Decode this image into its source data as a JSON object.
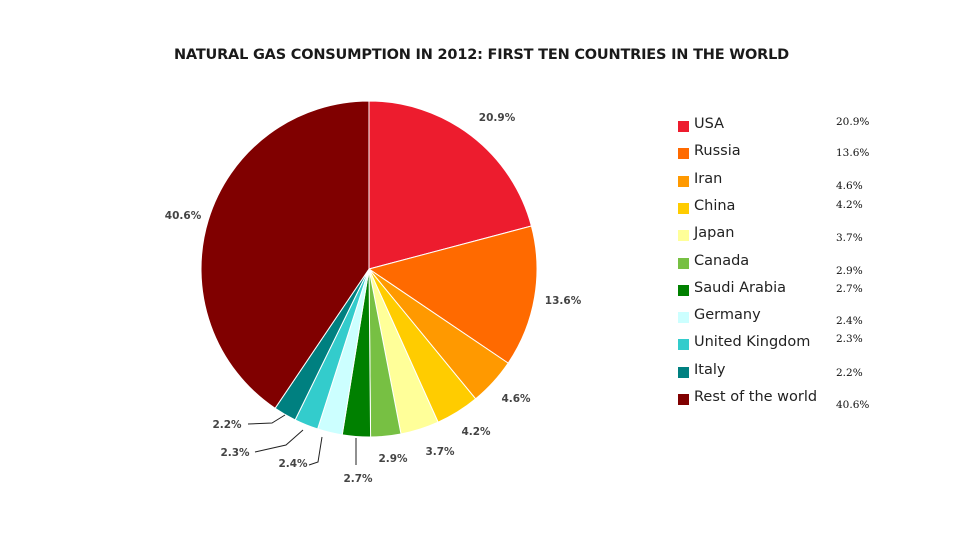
{
  "chart_data": {
    "type": "pie",
    "title": "NATURAL GAS CONSUMPTION IN 2012: FIRST TEN COUNTRIES IN THE WORLD",
    "legend_position": "right",
    "slices": [
      {
        "name": "USA",
        "value": 20.9,
        "label": "20.9%",
        "color": "#ed1c2e"
      },
      {
        "name": "Russia",
        "value": 13.6,
        "label": "13.6%",
        "color": "#ff6a00"
      },
      {
        "name": "Iran",
        "value": 4.6,
        "label": "4.6%",
        "color": "#ff9900"
      },
      {
        "name": "China",
        "value": 4.2,
        "label": "4.2%",
        "color": "#ffcc00"
      },
      {
        "name": "Japan",
        "value": 3.7,
        "label": "3.7%",
        "color": "#ffff99"
      },
      {
        "name": "Canada",
        "value": 2.9,
        "label": "2.9%",
        "color": "#77c043"
      },
      {
        "name": "Saudi Arabia",
        "value": 2.7,
        "label": "2.7%",
        "color": "#008000"
      },
      {
        "name": "Germany",
        "value": 2.4,
        "label": "2.4%",
        "color": "#ccffff"
      },
      {
        "name": "United Kingdom",
        "value": 2.3,
        "label": "2.3%",
        "color": "#33cccc"
      },
      {
        "name": "Italy",
        "value": 2.2,
        "label": "2.2%",
        "color": "#008080"
      },
      {
        "name": "Rest of the world",
        "value": 40.6,
        "label": "40.6%",
        "color": "#800000"
      }
    ]
  }
}
